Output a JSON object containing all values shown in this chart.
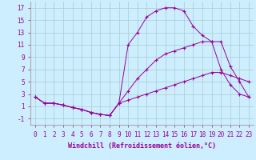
{
  "background_color": "#cceeff",
  "line_color": "#990099",
  "grid_color": "#aacccc",
  "xlabel": "Windchill (Refroidissement éolien,°C)",
  "xlabel_fontsize": 6,
  "tick_fontsize": 5.5,
  "ylim": [
    -2,
    18
  ],
  "xlim": [
    -0.5,
    23.5
  ],
  "yticks": [
    -1,
    1,
    3,
    5,
    7,
    9,
    11,
    13,
    15,
    17
  ],
  "xticks": [
    0,
    1,
    2,
    3,
    4,
    5,
    6,
    7,
    8,
    9,
    10,
    11,
    12,
    13,
    14,
    15,
    16,
    17,
    18,
    19,
    20,
    21,
    22,
    23
  ],
  "series": [
    {
      "x": [
        0,
        1,
        2,
        3,
        4,
        5,
        6,
        7,
        8,
        9,
        10,
        11,
        12,
        13,
        14,
        15,
        16,
        17,
        18,
        19,
        20,
        21,
        22,
        23
      ],
      "y": [
        2.5,
        1.5,
        1.5,
        1.2,
        0.8,
        0.5,
        0.0,
        -0.3,
        -0.5,
        1.5,
        2.0,
        2.5,
        3.0,
        3.5,
        4.0,
        4.5,
        5.0,
        5.5,
        6.0,
        6.5,
        6.5,
        6.0,
        5.5,
        5.0
      ]
    },
    {
      "x": [
        0,
        1,
        2,
        3,
        4,
        5,
        6,
        7,
        8,
        9,
        10,
        11,
        12,
        13,
        14,
        15,
        16,
        17,
        18,
        19,
        20,
        21,
        22,
        23
      ],
      "y": [
        2.5,
        1.5,
        1.5,
        1.2,
        0.8,
        0.5,
        0.0,
        -0.3,
        -0.5,
        1.5,
        11.0,
        13.0,
        15.5,
        16.5,
        17.0,
        17.0,
        16.5,
        14.0,
        12.5,
        11.5,
        7.0,
        4.5,
        3.0,
        2.5
      ]
    },
    {
      "x": [
        0,
        1,
        2,
        3,
        4,
        5,
        6,
        7,
        8,
        9,
        10,
        11,
        12,
        13,
        14,
        15,
        16,
        17,
        18,
        19,
        20,
        21,
        22,
        23
      ],
      "y": [
        2.5,
        1.5,
        1.5,
        1.2,
        0.8,
        0.5,
        0.0,
        -0.3,
        -0.5,
        1.5,
        3.5,
        5.5,
        7.0,
        8.5,
        9.5,
        10.0,
        10.5,
        11.0,
        11.5,
        11.5,
        11.5,
        7.5,
        5.0,
        2.5
      ]
    }
  ]
}
